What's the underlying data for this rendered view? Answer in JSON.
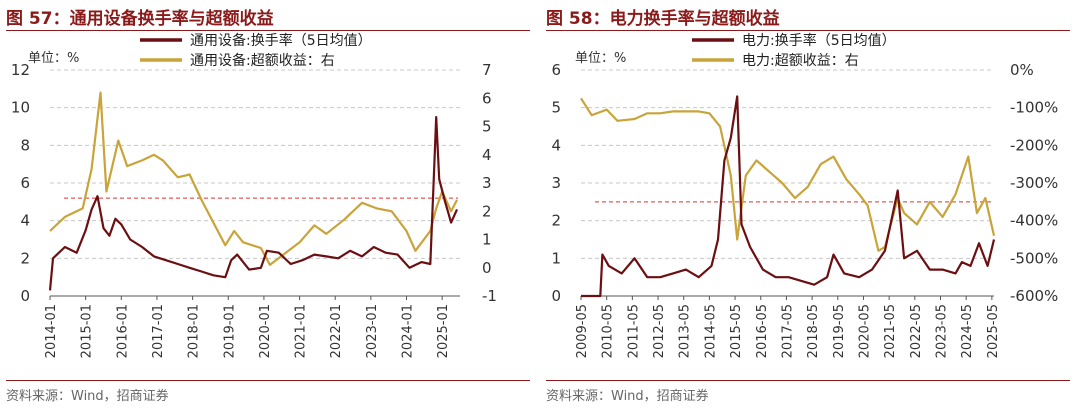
{
  "figures": [
    {
      "title": "图 57：通用设备换手率与超额收益",
      "unit_label": "单位：%",
      "source": "资料来源：Wind，招商证券"
    },
    {
      "title": "图 58：电力换手率与超额收益",
      "unit_label": "单位：%",
      "source": "资料来源：Wind，招商证券"
    }
  ],
  "colors": {
    "turnover": "#6b0f12",
    "excess": "#c9a43a",
    "refline": "#e03030",
    "title": "#8b1a1a"
  },
  "chart_data": [
    {
      "type": "line",
      "x_ticks": [
        "2014-01",
        "2015-01",
        "2016-01",
        "2017-01",
        "2018-01",
        "2019-01",
        "2020-01",
        "2021-01",
        "2022-01",
        "2023-01",
        "2024-01",
        "2025-01"
      ],
      "x_range": [
        "2014-01",
        "2025-07"
      ],
      "ylim_left": [
        0,
        12
      ],
      "yticks_left": [
        "0",
        "2",
        "4",
        "6",
        "8",
        "10",
        "12"
      ],
      "ylim_right": [
        -1,
        7
      ],
      "yticks_right": [
        "-1",
        "0",
        "1",
        "2",
        "3",
        "4",
        "5",
        "6",
        "7"
      ],
      "reference_line_left_axis": 5.2,
      "series": [
        {
          "name": "通用设备:换手率（5日均值）",
          "axis": "left",
          "points": [
            [
              "2014-01",
              0.3
            ],
            [
              "2014-02",
              2.0
            ],
            [
              "2014-06",
              2.6
            ],
            [
              "2014-10",
              2.3
            ],
            [
              "2015-01",
              3.5
            ],
            [
              "2015-03",
              4.6
            ],
            [
              "2015-05",
              5.3
            ],
            [
              "2015-07",
              3.6
            ],
            [
              "2015-09",
              3.2
            ],
            [
              "2015-11",
              4.1
            ],
            [
              "2016-01",
              3.8
            ],
            [
              "2016-04",
              3.0
            ],
            [
              "2016-08",
              2.6
            ],
            [
              "2016-12",
              2.1
            ],
            [
              "2017-04",
              1.9
            ],
            [
              "2017-08",
              1.7
            ],
            [
              "2017-12",
              1.5
            ],
            [
              "2018-04",
              1.3
            ],
            [
              "2018-08",
              1.1
            ],
            [
              "2018-12",
              1.0
            ],
            [
              "2019-02",
              1.9
            ],
            [
              "2019-04",
              2.2
            ],
            [
              "2019-08",
              1.4
            ],
            [
              "2019-12",
              1.5
            ],
            [
              "2020-02",
              2.4
            ],
            [
              "2020-06",
              2.3
            ],
            [
              "2020-10",
              1.7
            ],
            [
              "2021-02",
              1.9
            ],
            [
              "2021-06",
              2.2
            ],
            [
              "2021-10",
              2.1
            ],
            [
              "2022-02",
              2.0
            ],
            [
              "2022-06",
              2.4
            ],
            [
              "2022-10",
              2.1
            ],
            [
              "2023-02",
              2.6
            ],
            [
              "2023-06",
              2.3
            ],
            [
              "2023-10",
              2.2
            ],
            [
              "2024-02",
              1.5
            ],
            [
              "2024-06",
              1.8
            ],
            [
              "2024-09",
              1.7
            ],
            [
              "2024-10",
              5.6
            ],
            [
              "2024-11",
              9.5
            ],
            [
              "2024-12",
              6.2
            ],
            [
              "2025-02",
              5.0
            ],
            [
              "2025-04",
              3.9
            ],
            [
              "2025-06",
              4.6
            ]
          ]
        },
        {
          "name": "通用设备:超额收益：右",
          "axis": "right",
          "points": [
            [
              "2014-01",
              1.3
            ],
            [
              "2014-06",
              1.8
            ],
            [
              "2014-12",
              2.1
            ],
            [
              "2015-03",
              3.5
            ],
            [
              "2015-06",
              6.2
            ],
            [
              "2015-08",
              2.7
            ],
            [
              "2015-12",
              4.5
            ],
            [
              "2016-03",
              3.6
            ],
            [
              "2016-08",
              3.8
            ],
            [
              "2016-12",
              4.0
            ],
            [
              "2017-03",
              3.8
            ],
            [
              "2017-08",
              3.2
            ],
            [
              "2017-12",
              3.3
            ],
            [
              "2018-04",
              2.4
            ],
            [
              "2018-08",
              1.6
            ],
            [
              "2018-12",
              0.8
            ],
            [
              "2019-03",
              1.3
            ],
            [
              "2019-06",
              0.9
            ],
            [
              "2019-12",
              0.7
            ],
            [
              "2020-03",
              0.1
            ],
            [
              "2020-08",
              0.5
            ],
            [
              "2021-01",
              0.9
            ],
            [
              "2021-06",
              1.5
            ],
            [
              "2021-10",
              1.2
            ],
            [
              "2022-04",
              1.7
            ],
            [
              "2022-10",
              2.3
            ],
            [
              "2023-03",
              2.1
            ],
            [
              "2023-08",
              2.0
            ],
            [
              "2024-01",
              1.3
            ],
            [
              "2024-04",
              0.6
            ],
            [
              "2024-09",
              1.3
            ],
            [
              "2024-11",
              2.1
            ],
            [
              "2025-01",
              2.7
            ],
            [
              "2025-04",
              2.0
            ],
            [
              "2025-06",
              2.4
            ]
          ]
        }
      ]
    },
    {
      "type": "line",
      "x_ticks": [
        "2009-05",
        "2010-05",
        "2011-05",
        "2012-05",
        "2013-05",
        "2014-05",
        "2015-05",
        "2016-05",
        "2017-05",
        "2018-05",
        "2019-05",
        "2020-05",
        "2021-05",
        "2022-05",
        "2023-05",
        "2024-05",
        "2025-05"
      ],
      "x_range": [
        "2009-05",
        "2025-06"
      ],
      "ylim_left": [
        0,
        6
      ],
      "yticks_left": [
        "0",
        "1",
        "2",
        "3",
        "4",
        "5",
        "6"
      ],
      "ylim_right": [
        -600,
        0
      ],
      "yticks_right": [
        "-600%",
        "-500%",
        "-400%",
        "-300%",
        "-200%",
        "-100%",
        "0%"
      ],
      "reference_line_left_axis": 2.5,
      "series": [
        {
          "name": "电力:换手率（5日均值）",
          "axis": "left",
          "points": [
            [
              "2009-05",
              0.0
            ],
            [
              "2010-02",
              0.0
            ],
            [
              "2010-03",
              1.1
            ],
            [
              "2010-06",
              0.8
            ],
            [
              "2010-12",
              0.6
            ],
            [
              "2011-06",
              1.0
            ],
            [
              "2011-12",
              0.5
            ],
            [
              "2012-06",
              0.5
            ],
            [
              "2012-12",
              0.6
            ],
            [
              "2013-06",
              0.7
            ],
            [
              "2013-12",
              0.5
            ],
            [
              "2014-06",
              0.8
            ],
            [
              "2014-09",
              1.5
            ],
            [
              "2014-12",
              3.6
            ],
            [
              "2015-03",
              4.2
            ],
            [
              "2015-06",
              5.3
            ],
            [
              "2015-08",
              1.9
            ],
            [
              "2015-12",
              1.3
            ],
            [
              "2016-06",
              0.7
            ],
            [
              "2016-12",
              0.5
            ],
            [
              "2017-06",
              0.5
            ],
            [
              "2017-12",
              0.4
            ],
            [
              "2018-06",
              0.3
            ],
            [
              "2018-12",
              0.5
            ],
            [
              "2019-03",
              1.1
            ],
            [
              "2019-08",
              0.6
            ],
            [
              "2020-03",
              0.5
            ],
            [
              "2020-09",
              0.7
            ],
            [
              "2021-03",
              1.2
            ],
            [
              "2021-09",
              2.8
            ],
            [
              "2021-12",
              1.0
            ],
            [
              "2022-06",
              1.2
            ],
            [
              "2022-12",
              0.7
            ],
            [
              "2023-06",
              0.7
            ],
            [
              "2023-12",
              0.6
            ],
            [
              "2024-03",
              0.9
            ],
            [
              "2024-07",
              0.8
            ],
            [
              "2024-11",
              1.4
            ],
            [
              "2025-03",
              0.8
            ],
            [
              "2025-06",
              1.5
            ]
          ]
        },
        {
          "name": "电力:超额收益：右",
          "axis": "right",
          "points": [
            [
              "2009-05",
              -75
            ],
            [
              "2009-10",
              -120
            ],
            [
              "2010-05",
              -105
            ],
            [
              "2010-10",
              -135
            ],
            [
              "2011-06",
              -130
            ],
            [
              "2011-12",
              -115
            ],
            [
              "2012-06",
              -115
            ],
            [
              "2012-12",
              -110
            ],
            [
              "2013-06",
              -110
            ],
            [
              "2013-12",
              -110
            ],
            [
              "2014-05",
              -115
            ],
            [
              "2014-10",
              -150
            ],
            [
              "2015-03",
              -280
            ],
            [
              "2015-06",
              -450
            ],
            [
              "2015-10",
              -280
            ],
            [
              "2016-03",
              -240
            ],
            [
              "2016-09",
              -270
            ],
            [
              "2017-03",
              -300
            ],
            [
              "2017-09",
              -340
            ],
            [
              "2018-03",
              -310
            ],
            [
              "2018-09",
              -250
            ],
            [
              "2019-03",
              -230
            ],
            [
              "2019-09",
              -290
            ],
            [
              "2020-03",
              -330
            ],
            [
              "2020-07",
              -360
            ],
            [
              "2020-12",
              -480
            ],
            [
              "2021-03",
              -470
            ],
            [
              "2021-09",
              -340
            ],
            [
              "2021-12",
              -380
            ],
            [
              "2022-06",
              -410
            ],
            [
              "2022-12",
              -350
            ],
            [
              "2023-06",
              -390
            ],
            [
              "2023-12",
              -330
            ],
            [
              "2024-06",
              -230
            ],
            [
              "2024-10",
              -380
            ],
            [
              "2025-02",
              -340
            ],
            [
              "2025-06",
              -440
            ]
          ]
        }
      ]
    }
  ]
}
